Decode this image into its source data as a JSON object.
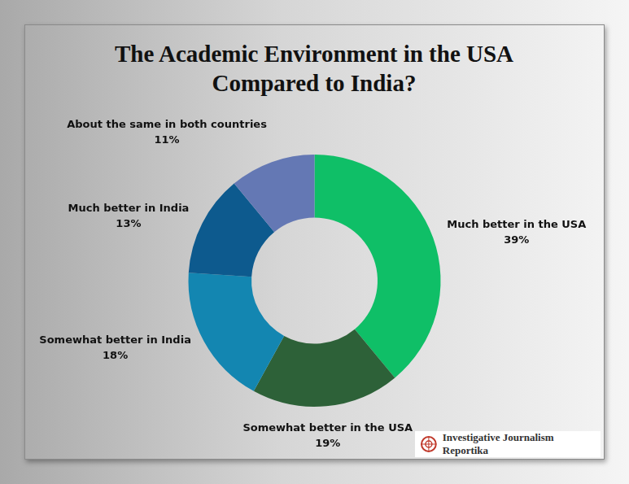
{
  "chart_data": {
    "type": "doughnut",
    "title": "The Academic Environment in the USA Compared to India?",
    "categories": [
      "Much better in the USA",
      "Somewhat better in the USA",
      "Somewhat better in India",
      "Much better in India",
      "About the same in both countries"
    ],
    "values": [
      39,
      19,
      18,
      13,
      11
    ],
    "value_labels": [
      "39%",
      "19%",
      "18%",
      "13%",
      "11%"
    ],
    "colors": [
      "#0fbf67",
      "#2d6138",
      "#1386b1",
      "#0d5a8e",
      "#6478b4"
    ],
    "data_labels": true,
    "source": "Investigative Journalism Reportika"
  }
}
